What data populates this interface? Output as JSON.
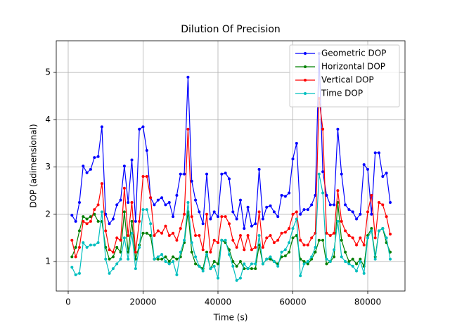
{
  "chart_data": {
    "type": "line",
    "title": "Dilution Of Precision",
    "x_label": "Time (s)",
    "y_label": "DOP (adimensional)",
    "x": [
      1000,
      2000,
      3000,
      4000,
      5000,
      6000,
      7000,
      8000,
      9000,
      10000,
      11000,
      12000,
      13000,
      14000,
      15000,
      16000,
      17000,
      18000,
      19000,
      20000,
      21000,
      22000,
      23000,
      24000,
      25000,
      26000,
      27000,
      28000,
      29000,
      30000,
      31000,
      32000,
      33000,
      34000,
      35000,
      36000,
      37000,
      38000,
      39000,
      40000,
      41000,
      42000,
      43000,
      44000,
      45000,
      46000,
      47000,
      48000,
      49000,
      50000,
      51000,
      52000,
      53000,
      54000,
      55000,
      56000,
      57000,
      58000,
      59000,
      60000,
      61000,
      62000,
      63000,
      64000,
      65000,
      66000,
      67000,
      68000,
      69000,
      70000,
      71000,
      72000,
      73000,
      74000,
      75000,
      76000,
      77000,
      78000,
      79000,
      80000,
      81000,
      82000,
      83000,
      84000,
      85000,
      86000
    ],
    "series": [
      {
        "name": "Geometric DOP",
        "color": "#0000ff",
        "values": [
          1.98,
          1.85,
          2.25,
          3.02,
          2.88,
          2.95,
          3.2,
          3.22,
          3.85,
          2.0,
          1.8,
          1.9,
          2.2,
          2.3,
          3.02,
          2.25,
          3.15,
          1.85,
          3.8,
          3.85,
          3.35,
          2.35,
          2.2,
          2.3,
          2.35,
          2.2,
          2.25,
          1.95,
          2.4,
          2.85,
          2.85,
          4.9,
          2.7,
          2.3,
          2.05,
          1.8,
          2.85,
          1.9,
          2.05,
          1.95,
          2.85,
          2.87,
          2.75,
          2.05,
          1.9,
          2.3,
          1.7,
          2.15,
          1.75,
          1.8,
          2.95,
          1.9,
          2.15,
          2.18,
          2.05,
          1.95,
          2.4,
          2.38,
          2.45,
          3.17,
          3.5,
          2.0,
          2.1,
          2.1,
          2.2,
          2.4,
          5.4,
          2.9,
          2.4,
          2.2,
          2.2,
          3.8,
          2.85,
          2.2,
          2.1,
          2.05,
          1.9,
          2.0,
          3.05,
          2.95,
          2.0,
          3.3,
          3.3,
          2.8,
          2.87,
          2.25
        ]
      },
      {
        "name": "Horizontal DOP",
        "color": "#008000",
        "values": [
          1.1,
          1.3,
          1.65,
          1.95,
          1.9,
          1.95,
          2.0,
          1.85,
          1.85,
          1.3,
          1.05,
          1.1,
          1.3,
          1.2,
          2.05,
          1.2,
          1.85,
          1.05,
          1.35,
          1.6,
          1.6,
          1.55,
          1.05,
          1.05,
          1.05,
          1.1,
          1.0,
          1.1,
          1.05,
          1.1,
          1.4,
          2.05,
          1.2,
          0.95,
          0.9,
          0.85,
          1.2,
          0.85,
          1.0,
          0.95,
          1.45,
          1.4,
          1.25,
          1.0,
          0.9,
          1.0,
          0.85,
          0.85,
          0.85,
          0.85,
          1.35,
          0.95,
          1.05,
          1.05,
          1.0,
          0.95,
          1.1,
          1.12,
          1.2,
          1.5,
          1.55,
          1.05,
          1.0,
          0.95,
          1.05,
          1.2,
          1.45,
          1.45,
          0.95,
          1.0,
          1.1,
          2.25,
          1.45,
          1.2,
          1.0,
          1.05,
          0.95,
          1.05,
          0.9,
          1.55,
          1.7,
          1.1,
          1.65,
          1.7,
          1.4,
          1.2
        ]
      },
      {
        "name": "Vertical DOP",
        "color": "#ff0000",
        "values": [
          1.45,
          1.1,
          1.3,
          1.85,
          1.8,
          1.85,
          2.1,
          2.2,
          2.65,
          1.65,
          1.25,
          1.2,
          1.5,
          1.45,
          2.55,
          1.55,
          2.25,
          1.2,
          1.85,
          2.8,
          2.8,
          2.35,
          1.55,
          1.65,
          1.6,
          1.75,
          1.55,
          1.6,
          1.45,
          1.7,
          2.0,
          3.8,
          1.95,
          1.55,
          1.55,
          1.25,
          2.0,
          1.2,
          1.45,
          1.4,
          1.95,
          1.95,
          1.8,
          1.45,
          1.3,
          1.55,
          1.25,
          1.55,
          1.25,
          1.3,
          2.05,
          1.3,
          1.5,
          1.55,
          1.4,
          1.45,
          1.6,
          1.62,
          1.7,
          2.0,
          2.05,
          1.45,
          1.35,
          1.35,
          1.5,
          1.6,
          4.45,
          3.8,
          1.6,
          1.55,
          1.6,
          2.5,
          1.85,
          1.65,
          1.55,
          1.5,
          1.35,
          1.5,
          1.35,
          2.05,
          2.4,
          1.5,
          2.25,
          2.2,
          1.95,
          1.58
        ]
      },
      {
        "name": "Time DOP",
        "color": "#00bfbf",
        "values": [
          0.88,
          0.72,
          0.75,
          1.4,
          1.3,
          1.35,
          1.35,
          1.4,
          2.05,
          1.05,
          0.75,
          0.85,
          0.95,
          1.05,
          1.5,
          1.05,
          1.6,
          0.85,
          1.3,
          2.1,
          2.1,
          1.8,
          1.05,
          1.1,
          1.15,
          1.0,
          0.95,
          1.0,
          0.72,
          1.2,
          1.45,
          2.25,
          1.4,
          1.1,
          0.9,
          0.8,
          1.15,
          0.85,
          0.9,
          0.65,
          1.45,
          1.45,
          1.15,
          0.9,
          0.6,
          0.65,
          0.95,
          0.85,
          0.95,
          0.95,
          1.55,
          0.95,
          1.05,
          1.1,
          1.0,
          0.9,
          1.2,
          1.25,
          1.4,
          1.7,
          1.9,
          0.7,
          0.95,
          1.0,
          1.1,
          1.3,
          2.85,
          2.45,
          1.05,
          1.0,
          1.25,
          1.85,
          1.1,
          1.0,
          0.95,
          0.9,
          0.8,
          1.0,
          0.75,
          1.5,
          1.65,
          1.05,
          1.65,
          1.7,
          1.5,
          1.05
        ]
      }
    ],
    "xlim": [
      -3190,
      89950
    ],
    "xticks": [
      0,
      20000,
      40000,
      60000,
      80000
    ],
    "ylim": [
      0.376,
      5.67
    ],
    "yticks": [
      1,
      2,
      3,
      4,
      5
    ],
    "grid": true,
    "legend": "upper right"
  }
}
